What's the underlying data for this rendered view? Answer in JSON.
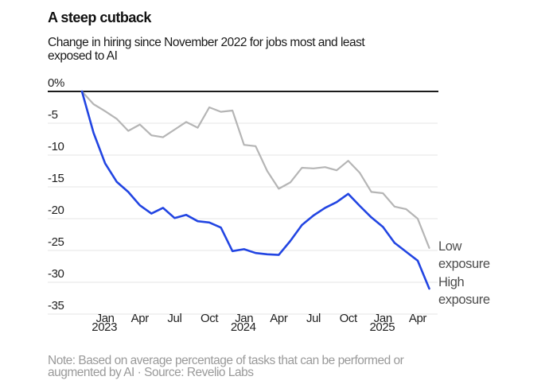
{
  "header": {
    "title": "A steep cutback",
    "subtitle_line1": "Change in hiring since November 2022 for jobs most and least",
    "subtitle_line2": "exposed to AI"
  },
  "legend": {
    "low": "Low exposure",
    "high": "High exposure"
  },
  "note": {
    "line1": "Note: Based on average percentage of tasks that can be performed or",
    "line2": "augmented by AI · Source: Revelio Labs"
  },
  "colors": {
    "high_exposure_line": "#2245e2",
    "low_exposure_line": "#b5b5b5",
    "zero_line": "#1b1b1b",
    "gridline": "#e6e6e6",
    "axis_text": "#1f1f1f",
    "legend_text": "#4d4d4d",
    "note_text": "#9a9a9a"
  },
  "axis": {
    "y_ticks": [
      {
        "label": "0%",
        "value": 0
      },
      {
        "label": "-5",
        "value": -5
      },
      {
        "label": "-10",
        "value": -10
      },
      {
        "label": "-15",
        "value": -15
      },
      {
        "label": "-20",
        "value": -20
      },
      {
        "label": "-25",
        "value": -25
      },
      {
        "label": "-30",
        "value": -30
      },
      {
        "label": "-35",
        "value": -35
      }
    ],
    "x_ticks": [
      {
        "label": "Jan",
        "month_index": 2,
        "year_label": "2023"
      },
      {
        "label": "Apr",
        "month_index": 5
      },
      {
        "label": "Jul",
        "month_index": 8
      },
      {
        "label": "Oct",
        "month_index": 11
      },
      {
        "label": "Jan",
        "month_index": 14,
        "year_label": "2024"
      },
      {
        "label": "Apr",
        "month_index": 17
      },
      {
        "label": "Jul",
        "month_index": 20
      },
      {
        "label": "Oct",
        "month_index": 23
      },
      {
        "label": "Jan",
        "month_index": 26,
        "year_label": "2025"
      },
      {
        "label": "Apr",
        "month_index": 29
      }
    ]
  },
  "chart_data": {
    "type": "line",
    "title": "A steep cutback",
    "subtitle": "Change in hiring since November 2022 for jobs most and least exposed to AI",
    "y_unit": "percent change in hiring since November 2022",
    "ylim": [
      -35,
      0
    ],
    "yticks": [
      0,
      -5,
      -10,
      -15,
      -20,
      -25,
      -30,
      -35
    ],
    "grid": "horizontal",
    "legend_position": "right of line endpoints",
    "x": [
      "Nov 2022",
      "Dec 2022",
      "Jan 2023",
      "Feb 2023",
      "Mar 2023",
      "Apr 2023",
      "May 2023",
      "Jun 2023",
      "Jul 2023",
      "Aug 2023",
      "Sep 2023",
      "Oct 2023",
      "Nov 2023",
      "Dec 2023",
      "Jan 2024",
      "Feb 2024",
      "Mar 2024",
      "Apr 2024",
      "May 2024",
      "Jun 2024",
      "Jul 2024",
      "Aug 2024",
      "Sep 2024",
      "Oct 2024",
      "Nov 2024",
      "Dec 2024",
      "Jan 2025",
      "Feb 2025",
      "Mar 2025",
      "Apr 2025",
      "May 2025"
    ],
    "series": [
      {
        "name": "Low exposure",
        "color": "#b5b5b5",
        "values": [
          0,
          -2.0,
          -3.1,
          -4.3,
          -6.2,
          -5.2,
          -6.9,
          -7.2,
          -6.0,
          -4.8,
          -5.7,
          -2.5,
          -3.2,
          -3.0,
          -8.4,
          -8.6,
          -12.5,
          -15.3,
          -14.3,
          -12.0,
          -12.1,
          -11.9,
          -12.4,
          -10.9,
          -12.8,
          -15.8,
          -16.0,
          -18.1,
          -18.5,
          -20.0,
          -24.6
        ]
      },
      {
        "name": "High exposure",
        "color": "#2245e2",
        "values": [
          0,
          -6.5,
          -11.3,
          -14.2,
          -15.8,
          -17.9,
          -19.2,
          -18.3,
          -19.9,
          -19.4,
          -20.4,
          -20.6,
          -21.4,
          -25.1,
          -24.8,
          -25.4,
          -25.6,
          -25.7,
          -23.5,
          -21.0,
          -19.5,
          -18.3,
          -17.4,
          -16.1,
          -18.0,
          -19.8,
          -21.3,
          -23.8,
          -25.2,
          -26.6,
          -31.0
        ]
      }
    ]
  }
}
